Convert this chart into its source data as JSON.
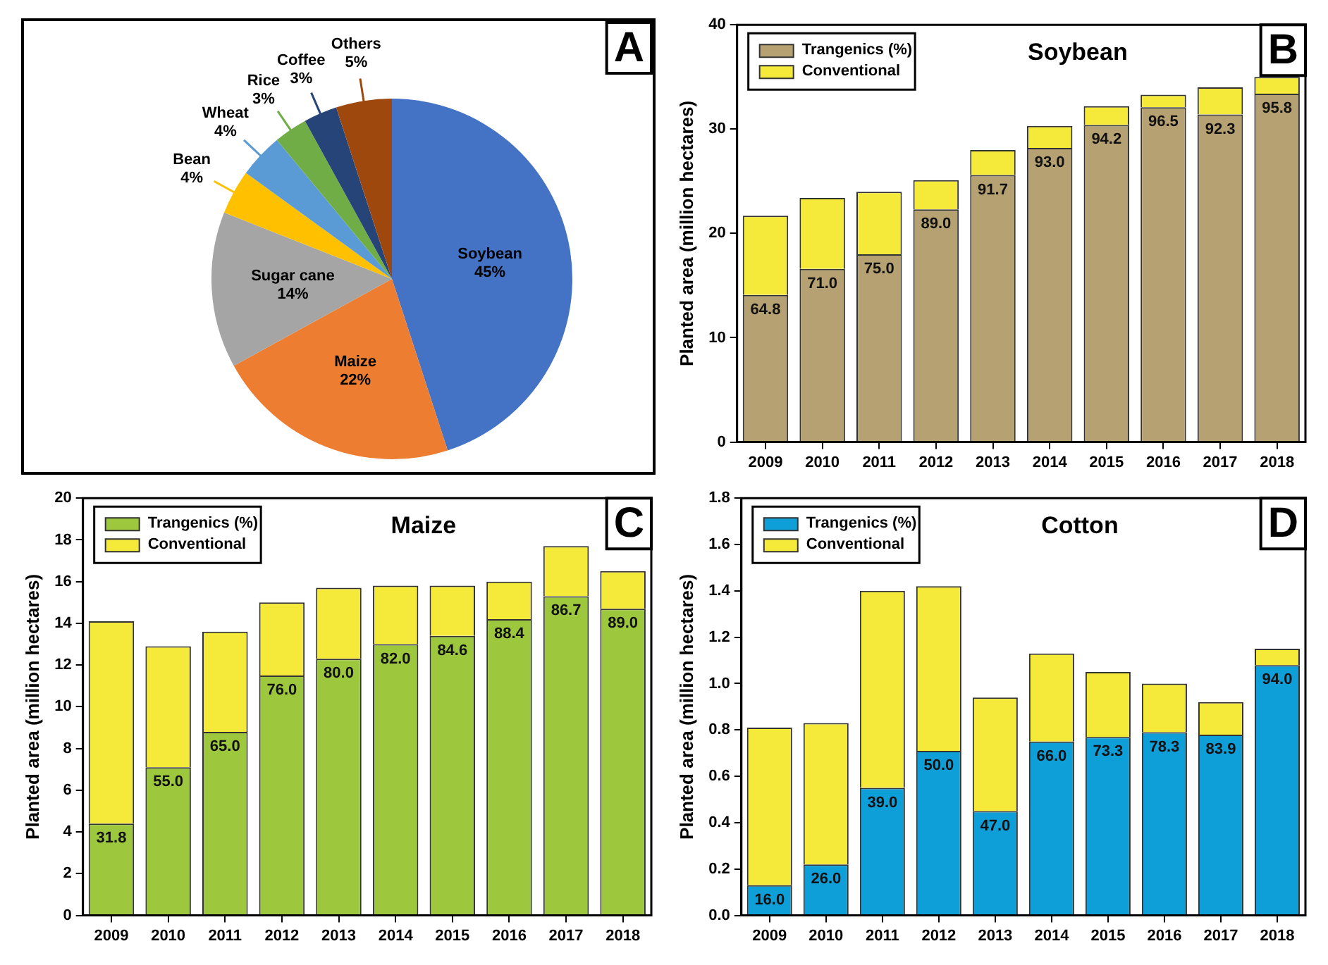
{
  "chart_data": [
    {
      "type": "pie",
      "categories": [
        "Soybean",
        "Maize",
        "Sugar cane",
        "Bean",
        "Wheat",
        "Rice",
        "Coffee",
        "Others"
      ],
      "values": [
        45,
        22,
        14,
        4,
        4,
        3,
        3,
        5
      ],
      "value_labels": [
        "45%",
        "22%",
        "14%",
        "4%",
        "4%",
        "3%",
        "3%",
        "5%"
      ],
      "colors": [
        "#4472c4",
        "#ed7d31",
        "#a5a5a5",
        "#ffc000",
        "#5b9bd5",
        "#70ad47",
        "#264478",
        "#9e480e"
      ],
      "annotations": [
        "A"
      ]
    },
    {
      "type": "bar",
      "title": "Soybean",
      "ylabel": "Planted area (million hectares)",
      "categories": [
        "2009",
        "2010",
        "2011",
        "2012",
        "2013",
        "2014",
        "2015",
        "2016",
        "2017",
        "2018"
      ],
      "stacked": true,
      "legend": "top left",
      "ylim": [
        0,
        40
      ],
      "yticks": [
        0,
        10,
        20,
        30,
        40
      ],
      "annotations": [
        "B",
        {
          "text": "64.8",
          "x": "2009",
          "y": 14.1
        },
        {
          "text": "71.0",
          "x": "2010",
          "y": 16.6
        },
        {
          "text": "75.0",
          "x": "2011",
          "y": 18.0
        },
        {
          "text": "89.0",
          "x": "2012",
          "y": 22.3
        },
        {
          "text": "91.7",
          "x": "2013",
          "y": 25.6
        },
        {
          "text": "93.0",
          "x": "2014",
          "y": 28.2
        },
        {
          "text": "94.2",
          "x": "2015",
          "y": 30.4
        },
        {
          "text": "96.5",
          "x": "2016",
          "y": 32.1
        },
        {
          "text": "92.3",
          "x": "2017",
          "y": 31.4
        },
        {
          "text": "95.8",
          "x": "2018",
          "y": 33.4
        }
      ],
      "series": [
        {
          "name": "Trangenics (%)",
          "color": "#b5a171",
          "values": [
            14.1,
            16.6,
            18.0,
            22.3,
            25.6,
            28.2,
            30.4,
            32.1,
            31.4,
            33.4
          ]
        },
        {
          "name": "Conventional",
          "color": "#f5ea3a",
          "values": [
            7.6,
            6.8,
            6.0,
            2.8,
            2.4,
            2.1,
            1.8,
            1.2,
            2.6,
            1.6
          ]
        }
      ]
    },
    {
      "type": "bar",
      "title": "Maize",
      "ylabel": "Planted area (million hectares)",
      "categories": [
        "2009",
        "2010",
        "2011",
        "2012",
        "2013",
        "2014",
        "2015",
        "2016",
        "2017",
        "2018"
      ],
      "stacked": true,
      "legend": "top left",
      "ylim": [
        0,
        20
      ],
      "yticks": [
        0,
        2,
        4,
        6,
        8,
        10,
        12,
        14,
        16,
        18,
        20
      ],
      "annotations": [
        "C",
        {
          "text": "31.8",
          "x": "2009",
          "y": 4.4
        },
        {
          "text": "55.0",
          "x": "2010",
          "y": 7.1
        },
        {
          "text": "65.0",
          "x": "2011",
          "y": 8.8
        },
        {
          "text": "76.0",
          "x": "2012",
          "y": 11.5
        },
        {
          "text": "80.0",
          "x": "2013",
          "y": 12.3
        },
        {
          "text": "82.0",
          "x": "2014",
          "y": 13.0
        },
        {
          "text": "84.6",
          "x": "2015",
          "y": 13.4
        },
        {
          "text": "88.4",
          "x": "2016",
          "y": 14.2
        },
        {
          "text": "86.7",
          "x": "2017",
          "y": 15.3
        },
        {
          "text": "89.0",
          "x": "2018",
          "y": 14.7
        }
      ],
      "series": [
        {
          "name": "Trangenics (%)",
          "color": "#9dc73c",
          "values": [
            4.4,
            7.1,
            8.8,
            11.5,
            12.3,
            13.0,
            13.4,
            14.2,
            15.3,
            14.7
          ]
        },
        {
          "name": "Conventional",
          "color": "#f5ea3a",
          "values": [
            9.7,
            5.8,
            4.8,
            3.5,
            3.4,
            2.8,
            2.4,
            1.8,
            2.4,
            1.8
          ]
        }
      ]
    },
    {
      "type": "bar",
      "title": "Cotton",
      "ylabel": "Planted area (million hectares)",
      "categories": [
        "2009",
        "2010",
        "2011",
        "2012",
        "2013",
        "2014",
        "2015",
        "2016",
        "2017",
        "2018"
      ],
      "stacked": true,
      "legend": "top left",
      "ylim": [
        0,
        1.8
      ],
      "yticks": [
        {
          "value": 0,
          "label": "0.0"
        },
        0.2,
        0.4,
        0.6,
        0.8,
        {
          "value": 1,
          "label": "1.0"
        },
        1.2,
        1.4,
        1.6,
        1.8
      ],
      "annotations": [
        "D",
        {
          "text": "16.0",
          "x": "2009",
          "y": 0.13
        },
        {
          "text": "26.0",
          "x": "2010",
          "y": 0.22
        },
        {
          "text": "39.0",
          "x": "2011",
          "y": 0.55
        },
        {
          "text": "50.0",
          "x": "2012",
          "y": 0.71
        },
        {
          "text": "47.0",
          "x": "2013",
          "y": 0.45
        },
        {
          "text": "66.0",
          "x": "2014",
          "y": 0.75
        },
        {
          "text": "73.3",
          "x": "2015",
          "y": 0.77
        },
        {
          "text": "78.3",
          "x": "2016",
          "y": 0.79
        },
        {
          "text": "83.9",
          "x": "2017",
          "y": 0.78
        },
        {
          "text": "94.0",
          "x": "2018",
          "y": 1.08
        }
      ],
      "series": [
        {
          "name": "Trangenics (%)",
          "color": "#0f9fd8",
          "values": [
            0.13,
            0.22,
            0.55,
            0.71,
            0.45,
            0.75,
            0.77,
            0.79,
            0.78,
            1.08
          ]
        },
        {
          "name": "Conventional",
          "color": "#f5ea3a",
          "values": [
            0.68,
            0.61,
            0.85,
            0.71,
            0.49,
            0.38,
            0.28,
            0.21,
            0.14,
            0.07
          ]
        }
      ]
    }
  ]
}
